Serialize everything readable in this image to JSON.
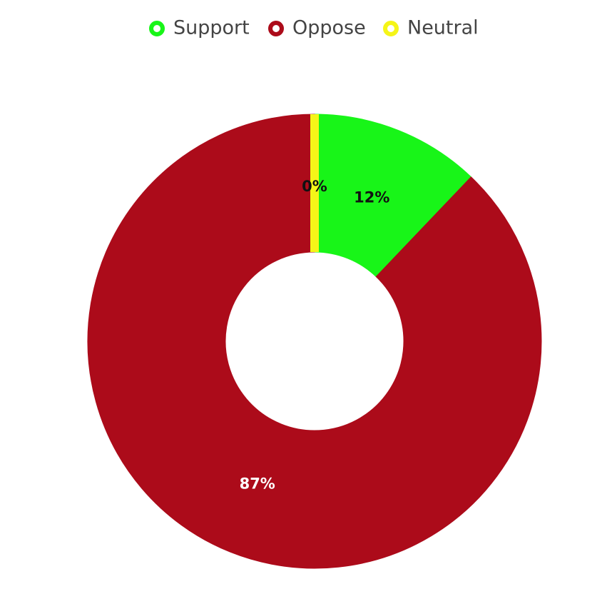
{
  "chart_data": {
    "type": "doughnut",
    "categories": [
      "Support",
      "Oppose",
      "Neutral"
    ],
    "values": [
      12,
      87,
      0
    ],
    "value_labels": [
      "12%",
      "87%",
      "0%"
    ],
    "colors": [
      "#18f518",
      "#ac0b1a",
      "#f5f518"
    ],
    "label_colors": [
      "#111111",
      "#ffffff",
      "#111111"
    ],
    "legend": "top"
  }
}
